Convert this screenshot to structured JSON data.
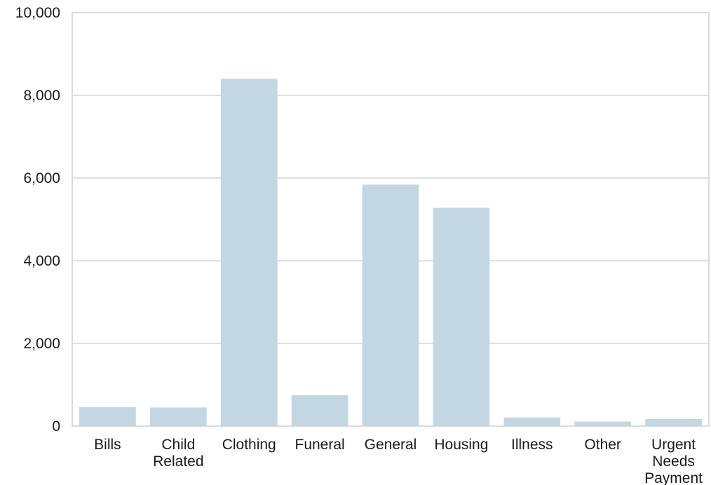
{
  "chart_data": {
    "type": "bar",
    "categories": [
      [
        "Bills"
      ],
      [
        "Child",
        "Related"
      ],
      [
        "Clothing"
      ],
      [
        "Funeral"
      ],
      [
        "General"
      ],
      [
        "Housing"
      ],
      [
        "Illness"
      ],
      [
        "Other"
      ],
      [
        "Urgent",
        "Needs",
        "Payment"
      ]
    ],
    "values": [
      460,
      450,
      8400,
      750,
      5840,
      5280,
      210,
      110,
      170
    ],
    "ylim": [
      0,
      10000
    ],
    "yticks": [
      0,
      2000,
      4000,
      6000,
      8000,
      10000
    ],
    "ytick_labels": [
      "0",
      "2,000",
      "4,000",
      "6,000",
      "8,000",
      "10,000"
    ],
    "bar_color": "#c3d7e2",
    "grid": true,
    "legend": "none"
  }
}
